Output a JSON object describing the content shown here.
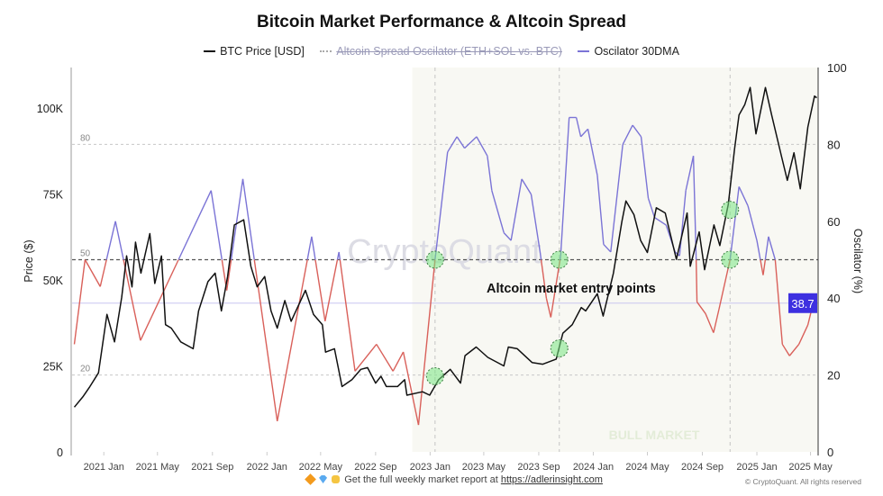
{
  "chart_data": {
    "type": "line",
    "title": "Bitcoin Market Performance & Altcoin Spread",
    "legend": [
      {
        "name": "BTC Price [USD]",
        "color": "#111111",
        "style": "solid"
      },
      {
        "name": "Altcoin Spread Oscilator (ETH+SOL vs. BTC)",
        "color": "#aaaaaa",
        "style": "dotted",
        "hidden": true
      },
      {
        "name": "Oscilator 30DMA",
        "color": "#7b74d6",
        "style": "solid"
      }
    ],
    "legend_position": "top",
    "x_range": [
      "2020-10-22",
      "2025-05-18"
    ],
    "x_ticks": [
      "2021 Jan",
      "2021 May",
      "2021 Sep",
      "2022 Jan",
      "2022 May",
      "2022 Sep",
      "2023 Jan",
      "2023 May",
      "2023 Sep",
      "2024 Jan",
      "2024 May",
      "2024 Sep",
      "2025 Jan",
      "2025 May"
    ],
    "x_tick_dates": [
      "2021-01-01",
      "2021-05-01",
      "2021-09-01",
      "2022-01-01",
      "2022-05-01",
      "2022-09-01",
      "2023-01-01",
      "2023-05-01",
      "2023-09-01",
      "2024-01-01",
      "2024-05-01",
      "2024-09-01",
      "2025-01-01",
      "2025-05-01"
    ],
    "y_left": {
      "label": "Price ($)",
      "range": [
        0,
        111800
      ],
      "ticks": [
        0,
        25000,
        50000,
        75000,
        100000
      ],
      "tick_labels": [
        "0",
        "25K",
        "50K",
        "75K",
        "100K"
      ]
    },
    "y_right": {
      "label": "Oscilator (%)",
      "range": [
        0,
        100
      ],
      "ticks": [
        0,
        20,
        40,
        60,
        80,
        100
      ],
      "tick_labels": [
        "0",
        "20",
        "40",
        "60",
        "80",
        "100"
      ]
    },
    "reference_lines": [
      {
        "value": 80,
        "label": "80",
        "style": "dashed-light"
      },
      {
        "value": 50,
        "label": "50",
        "style": "dashed-dark"
      },
      {
        "value": 20,
        "label": "20",
        "style": "dashed-light"
      }
    ],
    "current_value": {
      "value": 38.7,
      "label": "38.7",
      "color": "#3d30e0"
    },
    "osc_colors": {
      "above_50": "#7b74d6",
      "below_50": "#d9605a"
    },
    "btc_price": [
      [
        "2020-10-27",
        13000
      ],
      [
        "2020-11-15",
        16000
      ],
      [
        "2020-12-01",
        19000
      ],
      [
        "2020-12-20",
        23000
      ],
      [
        "2021-01-08",
        40000
      ],
      [
        "2021-01-25",
        32000
      ],
      [
        "2021-02-10",
        45000
      ],
      [
        "2021-02-21",
        57000
      ],
      [
        "2021-03-05",
        48000
      ],
      [
        "2021-03-13",
        61000
      ],
      [
        "2021-03-25",
        52000
      ],
      [
        "2021-04-14",
        63500
      ],
      [
        "2021-04-25",
        49000
      ],
      [
        "2021-05-10",
        57000
      ],
      [
        "2021-05-19",
        37000
      ],
      [
        "2021-06-01",
        36000
      ],
      [
        "2021-06-22",
        32000
      ],
      [
        "2021-07-20",
        30000
      ],
      [
        "2021-08-01",
        41000
      ],
      [
        "2021-08-22",
        49500
      ],
      [
        "2021-09-07",
        52000
      ],
      [
        "2021-09-21",
        41000
      ],
      [
        "2021-10-05",
        51000
      ],
      [
        "2021-10-20",
        66000
      ],
      [
        "2021-11-10",
        67500
      ],
      [
        "2021-11-26",
        54000
      ],
      [
        "2021-12-10",
        48000
      ],
      [
        "2021-12-27",
        51000
      ],
      [
        "2022-01-10",
        41000
      ],
      [
        "2022-01-24",
        36000
      ],
      [
        "2022-02-10",
        44000
      ],
      [
        "2022-02-24",
        38000
      ],
      [
        "2022-03-28",
        47000
      ],
      [
        "2022-04-15",
        40000
      ],
      [
        "2022-05-05",
        37000
      ],
      [
        "2022-05-12",
        29000
      ],
      [
        "2022-06-01",
        30000
      ],
      [
        "2022-06-18",
        19000
      ],
      [
        "2022-07-10",
        21000
      ],
      [
        "2022-07-30",
        24000
      ],
      [
        "2022-08-14",
        24500
      ],
      [
        "2022-09-01",
        20000
      ],
      [
        "2022-09-13",
        22000
      ],
      [
        "2022-09-25",
        19000
      ],
      [
        "2022-10-20",
        19000
      ],
      [
        "2022-11-05",
        21000
      ],
      [
        "2022-11-10",
        16500
      ],
      [
        "2022-12-15",
        17500
      ],
      [
        "2022-12-31",
        16500
      ],
      [
        "2023-01-20",
        21000
      ],
      [
        "2023-02-15",
        24000
      ],
      [
        "2023-03-10",
        20000
      ],
      [
        "2023-03-20",
        28000
      ],
      [
        "2023-04-14",
        30500
      ],
      [
        "2023-05-10",
        27500
      ],
      [
        "2023-06-15",
        25000
      ],
      [
        "2023-06-25",
        30500
      ],
      [
        "2023-07-15",
        30000
      ],
      [
        "2023-08-17",
        26000
      ],
      [
        "2023-09-10",
        25500
      ],
      [
        "2023-10-10",
        27000
      ],
      [
        "2023-10-25",
        34500
      ],
      [
        "2023-11-15",
        37000
      ],
      [
        "2023-12-05",
        42000
      ],
      [
        "2023-12-15",
        41000
      ],
      [
        "2024-01-10",
        46000
      ],
      [
        "2024-01-23",
        39500
      ],
      [
        "2024-02-15",
        52000
      ],
      [
        "2024-03-05",
        67000
      ],
      [
        "2024-03-14",
        73000
      ],
      [
        "2024-04-01",
        69000
      ],
      [
        "2024-04-16",
        61500
      ],
      [
        "2024-05-01",
        58000
      ],
      [
        "2024-05-21",
        71000
      ],
      [
        "2024-06-10",
        69500
      ],
      [
        "2024-07-05",
        56000
      ],
      [
        "2024-07-29",
        69500
      ],
      [
        "2024-08-05",
        54000
      ],
      [
        "2024-08-25",
        64000
      ],
      [
        "2024-09-06",
        53000
      ],
      [
        "2024-09-27",
        66000
      ],
      [
        "2024-10-10",
        60000
      ],
      [
        "2024-10-29",
        72000
      ],
      [
        "2024-11-12",
        88000
      ],
      [
        "2024-11-22",
        98000
      ],
      [
        "2024-12-05",
        101000
      ],
      [
        "2024-12-17",
        106000
      ],
      [
        "2024-12-30",
        92500
      ],
      [
        "2025-01-20",
        106000
      ],
      [
        "2025-02-03",
        98000
      ],
      [
        "2025-02-25",
        86000
      ],
      [
        "2025-03-10",
        79000
      ],
      [
        "2025-03-25",
        87000
      ],
      [
        "2025-04-08",
        76500
      ],
      [
        "2025-04-25",
        94500
      ],
      [
        "2025-05-10",
        103500
      ],
      [
        "2025-05-15",
        103000
      ]
    ],
    "oscillator_30dma": [
      [
        "2020-10-27",
        28
      ],
      [
        "2020-11-20",
        50
      ],
      [
        "2020-12-24",
        43
      ],
      [
        "2021-01-27",
        60
      ],
      [
        "2021-03-24",
        29
      ],
      [
        "2021-08-29",
        68
      ],
      [
        "2021-10-03",
        42
      ],
      [
        "2021-11-08",
        71
      ],
      [
        "2022-01-24",
        8
      ],
      [
        "2022-04-11",
        56
      ],
      [
        "2022-05-11",
        34
      ],
      [
        "2022-06-11",
        52
      ],
      [
        "2022-07-17",
        21
      ],
      [
        "2022-09-03",
        28
      ],
      [
        "2022-10-10",
        21
      ],
      [
        "2022-11-02",
        26
      ],
      [
        "2022-12-06",
        7
      ],
      [
        "2023-01-12",
        50
      ],
      [
        "2023-02-09",
        78
      ],
      [
        "2023-03-02",
        82
      ],
      [
        "2023-03-19",
        79
      ],
      [
        "2023-04-15",
        82
      ],
      [
        "2023-05-09",
        77
      ],
      [
        "2023-05-19",
        68
      ],
      [
        "2023-06-15",
        57
      ],
      [
        "2023-07-01",
        55
      ],
      [
        "2023-07-25",
        71
      ],
      [
        "2023-08-15",
        67
      ],
      [
        "2023-09-04",
        52
      ],
      [
        "2023-09-18",
        40
      ],
      [
        "2023-09-28",
        35
      ],
      [
        "2023-10-20",
        51
      ],
      [
        "2023-11-08",
        87
      ],
      [
        "2023-11-24",
        87
      ],
      [
        "2023-12-04",
        82
      ],
      [
        "2023-12-20",
        84
      ],
      [
        "2024-01-10",
        72
      ],
      [
        "2024-01-24",
        54
      ],
      [
        "2024-02-09",
        52
      ],
      [
        "2024-03-07",
        80
      ],
      [
        "2024-03-29",
        85
      ],
      [
        "2024-04-17",
        82
      ],
      [
        "2024-05-03",
        66
      ],
      [
        "2024-05-17",
        61
      ],
      [
        "2024-06-12",
        59
      ],
      [
        "2024-07-02",
        52
      ],
      [
        "2024-07-12",
        51
      ],
      [
        "2024-07-26",
        68
      ],
      [
        "2024-08-12",
        77
      ],
      [
        "2024-08-18",
        51
      ],
      [
        "2024-08-20",
        39
      ],
      [
        "2024-09-08",
        36
      ],
      [
        "2024-09-26",
        31
      ],
      [
        "2024-10-08",
        37
      ],
      [
        "2024-11-02",
        50
      ],
      [
        "2024-11-22",
        69
      ],
      [
        "2024-12-12",
        64
      ],
      [
        "2025-01-01",
        55
      ],
      [
        "2025-01-15",
        46
      ],
      [
        "2025-01-27",
        56
      ],
      [
        "2025-02-11",
        50
      ],
      [
        "2025-02-27",
        28
      ],
      [
        "2025-03-15",
        25
      ],
      [
        "2025-04-05",
        28
      ],
      [
        "2025-04-25",
        33
      ],
      [
        "2025-05-07",
        38.7
      ]
    ],
    "annotations": {
      "entry_text": "Altcoin market entry points",
      "entry_dates": [
        "2023-01-12",
        "2023-10-17",
        "2024-11-02"
      ],
      "circles": [
        {
          "date": "2023-01-12",
          "axis": "right",
          "value": 50
        },
        {
          "date": "2023-01-12",
          "axis": "left",
          "value": 22000
        },
        {
          "date": "2023-10-17",
          "axis": "right",
          "value": 50
        },
        {
          "date": "2023-10-17",
          "axis": "left",
          "value": 30100
        },
        {
          "date": "2024-11-02",
          "axis": "right",
          "value": 50
        },
        {
          "date": "2024-11-02",
          "axis": "left",
          "value": 70400
        }
      ],
      "bull_market": {
        "label": "BULL MARKET",
        "start": "2022-11-22",
        "color": "#e3ecd8"
      },
      "watermark": "CryptoQuant"
    }
  },
  "footer": {
    "text": "Get the full weekly market report at ",
    "link": "https://adlerinsight.com",
    "copyright": "© CryptoQuant. All rights reserved"
  }
}
